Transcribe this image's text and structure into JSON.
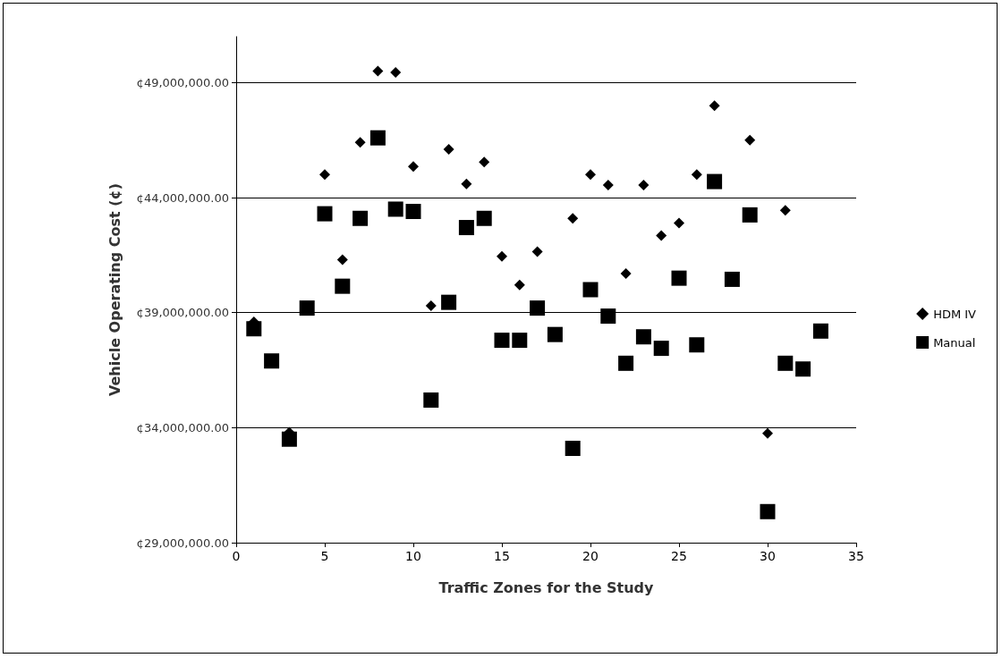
{
  "chart_data": {
    "type": "scatter",
    "xlabel": "Traffic Zones for the Study",
    "ylabel": "Vehicle Operating Cost (¢)",
    "x": [
      1,
      2,
      3,
      4,
      5,
      6,
      7,
      8,
      9,
      10,
      11,
      12,
      13,
      14,
      15,
      16,
      17,
      18,
      19,
      20,
      21,
      22,
      23,
      24,
      25,
      26,
      27,
      28,
      29,
      30,
      31,
      32,
      33
    ],
    "series": [
      {
        "name": "HDM IV",
        "color": "#000000",
        "marker": "diamond",
        "values": [
          38600000.0,
          null,
          33800000.0,
          null,
          45000000.0,
          41300000.0,
          46400000.0,
          49500000.0,
          49450000.0,
          45350000.0,
          39300000.0,
          46100000.0,
          44600000.0,
          45550000.0,
          41450000.0,
          40200000.0,
          41650000.0,
          null,
          43100000.0,
          45000000.0,
          44550000.0,
          40700000.0,
          44550000.0,
          42350000.0,
          42900000.0,
          45000000.0,
          48000000.0,
          null,
          46500000.0,
          33750000.0,
          43450000.0,
          null,
          null
        ]
      },
      {
        "name": "Manual",
        "color": "#000000",
        "marker": "square",
        "values": [
          38300000.0,
          36900000.0,
          33500000.0,
          39200000.0,
          43300000.0,
          40150000.0,
          43100000.0,
          46600000.0,
          43500000.0,
          43400000.0,
          35200000.0,
          39450000.0,
          42700000.0,
          43100000.0,
          37800000.0,
          37800000.0,
          39200000.0,
          38050000.0,
          33100000.0,
          40000000.0,
          38850000.0,
          36800000.0,
          37950000.0,
          37450000.0,
          40500000.0,
          37600000.0,
          44700000.0,
          40450000.0,
          43250000.0,
          30350000.0,
          36800000.0,
          36550000.0,
          38200000.0
        ]
      }
    ],
    "xlim": [
      0,
      35
    ],
    "xticks": [
      0,
      5,
      10,
      15,
      20,
      25,
      30,
      35
    ],
    "ylim": [
      29000000,
      51000000
    ],
    "yticks": [
      {
        "value": 29000000,
        "label": "¢29,000,000.00"
      },
      {
        "value": 34000000,
        "label": "¢34,000,000.00"
      },
      {
        "value": 39000000,
        "label": "¢39,000,000.00"
      },
      {
        "value": 44000000,
        "label": "¢44,000,000.00"
      },
      {
        "value": 49000000,
        "label": "¢49,000,000.00"
      }
    ],
    "grid": "y",
    "legend": "right"
  }
}
